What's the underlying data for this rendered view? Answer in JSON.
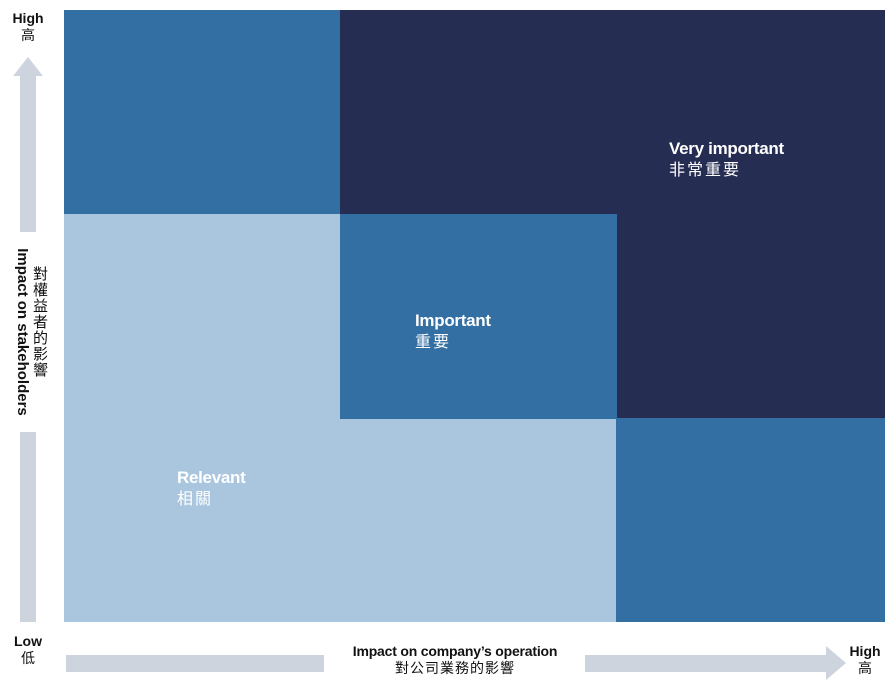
{
  "matrix": {
    "zones": {
      "very_important": {
        "en": "Very important",
        "zh": "非常重要"
      },
      "important": {
        "en": "Important",
        "zh": "重要"
      },
      "relevant": {
        "en": "Relevant",
        "zh": "相關"
      }
    }
  },
  "y_axis": {
    "label_en": "Impact on stakeholders",
    "label_zh": "對權益者的影響",
    "high_en": "High",
    "high_zh": "高",
    "low_en": "Low",
    "low_zh": "低"
  },
  "x_axis": {
    "label_en": "Impact on company’s operation",
    "label_zh": "對公司業務的影響",
    "high_en": "High",
    "high_zh": "高"
  },
  "colors": {
    "navy": "#262d52",
    "mid_blue": "#336fa3",
    "light_blue": "#a9c6de",
    "arrow_gray": "#cdd4dd"
  }
}
